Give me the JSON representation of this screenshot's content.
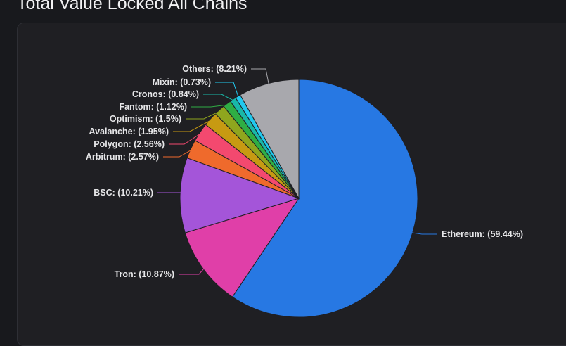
{
  "title": "Total Value Locked All Chains",
  "chart_data": {
    "type": "pie",
    "title": "Total Value Locked All Chains",
    "legend": "none",
    "slices": [
      {
        "name": "Ethereum",
        "value": 59.44,
        "label": "Ethereum: (59.44%)",
        "color": "#2778e3"
      },
      {
        "name": "Tron",
        "value": 10.87,
        "label": "Tron: (10.87%)",
        "color": "#e03fa8"
      },
      {
        "name": "BSC",
        "value": 10.21,
        "label": "BSC: (10.21%)",
        "color": "#a455d9"
      },
      {
        "name": "Arbitrum",
        "value": 2.57,
        "label": "Arbitrum: (2.57%)",
        "color": "#ef6a2c"
      },
      {
        "name": "Polygon",
        "value": 2.56,
        "label": "Polygon: (2.56%)",
        "color": "#f3496f"
      },
      {
        "name": "Avalanche",
        "value": 1.95,
        "label": "Avalanche: (1.95%)",
        "color": "#c79a12"
      },
      {
        "name": "Optimism",
        "value": 1.5,
        "label": "Optimism: (1.5%)",
        "color": "#8fa61e"
      },
      {
        "name": "Fantom",
        "value": 1.12,
        "label": "Fantom: (1.12%)",
        "color": "#2fae44"
      },
      {
        "name": "Cronos",
        "value": 0.84,
        "label": "Cronos: (0.84%)",
        "color": "#19b8a8"
      },
      {
        "name": "Mixin",
        "value": 0.73,
        "label": "Mixin: (0.73%)",
        "color": "#22c8ee"
      },
      {
        "name": "Others",
        "value": 8.21,
        "label": "Others: (8.21%)",
        "color": "#a8a8ad"
      }
    ]
  }
}
